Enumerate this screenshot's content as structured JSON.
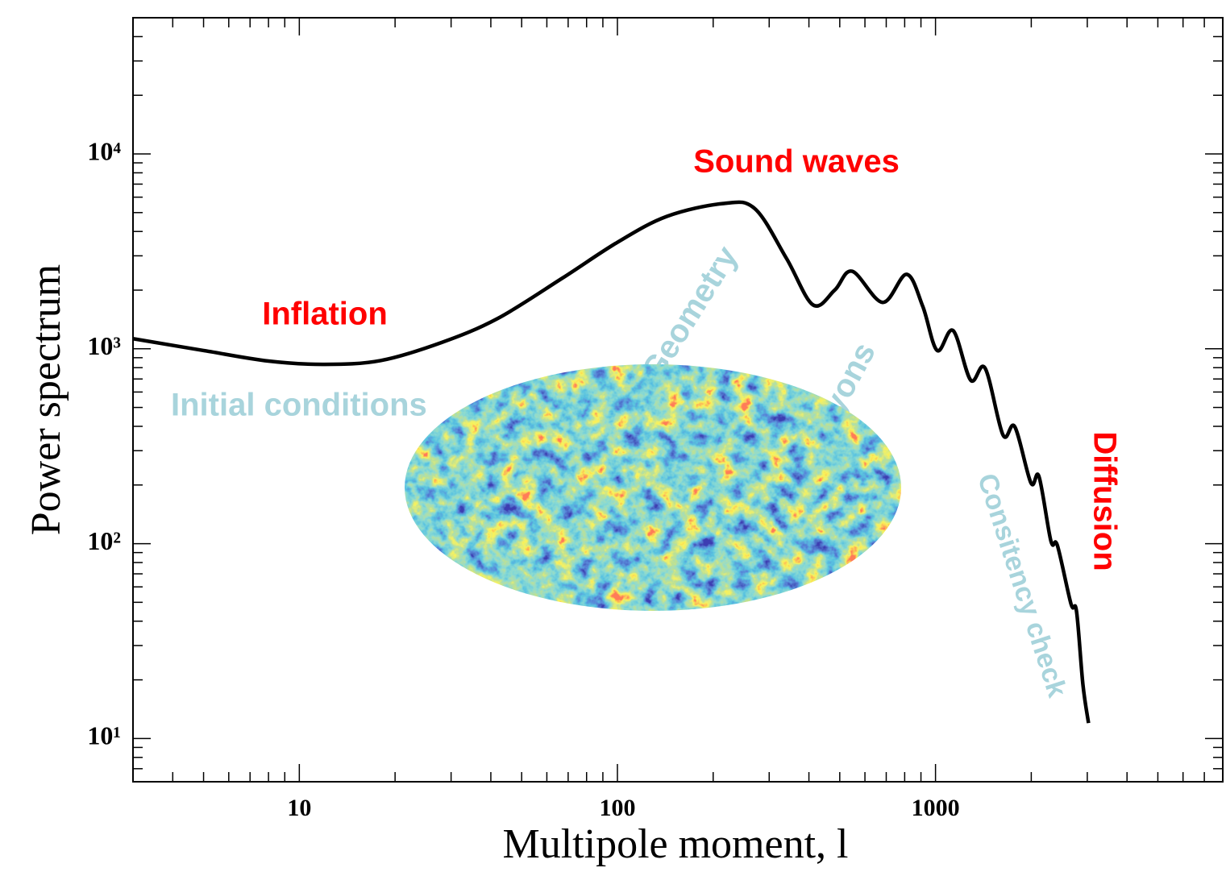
{
  "chart_data": {
    "type": "line",
    "xlabel": "Multipole moment, l",
    "ylabel": "Power spectrum",
    "log_x": true,
    "log_y": true,
    "color": "#000000",
    "x": [
      3,
      5,
      8,
      12,
      18,
      28,
      42,
      67,
      100,
      143,
      214,
      270,
      340,
      412,
      482,
      547,
      682,
      811,
      912,
      1012,
      1136,
      1290,
      1432,
      1630,
      1775,
      1995,
      2115,
      2306,
      2416,
      2667,
      2775,
      2906,
      3027
    ],
    "values": [
      1127,
      980,
      865,
      832,
      870,
      1077,
      1430,
      2300,
      3520,
      4780,
      5560,
      5250,
      2910,
      1680,
      2000,
      2500,
      1730,
      2410,
      1650,
      980,
      1240,
      690,
      795,
      361,
      398,
      205,
      221,
      103,
      98,
      49,
      45,
      19,
      12
    ],
    "xlim": [
      3,
      8000
    ],
    "ylim": [
      6,
      50000
    ],
    "xticks": [
      10,
      100,
      1000
    ],
    "yticks": [
      {
        "value": 10,
        "label": "10¹"
      },
      {
        "value": 100,
        "label": "10²"
      },
      {
        "value": 1000,
        "label": "10³"
      },
      {
        "value": 10000,
        "label": "10⁴"
      }
    ],
    "xminorticks": [
      3,
      4,
      5,
      6,
      7,
      8,
      9,
      20,
      30,
      40,
      50,
      60,
      70,
      80,
      90,
      200,
      300,
      400,
      500,
      600,
      700,
      800,
      900,
      2000,
      3000,
      4000,
      5000,
      6000,
      7000,
      8000
    ],
    "yminorticks": [
      6,
      7,
      8,
      9,
      20,
      30,
      40,
      50,
      60,
      70,
      80,
      90,
      200,
      300,
      400,
      500,
      600,
      700,
      800,
      900,
      2000,
      3000,
      4000,
      5000,
      6000,
      7000,
      8000,
      9000,
      20000,
      30000,
      40000
    ],
    "annotations": [
      {
        "text": "Sound waves",
        "color": "#ff0000"
      },
      {
        "text": "Inflation",
        "color": "#ff0000"
      },
      {
        "text": "Initial conditions",
        "color": "#a8d4dc"
      },
      {
        "text": "Geometry",
        "color": "#a8d4dc"
      },
      {
        "text": "Baryons",
        "color": "#a8d4dc"
      },
      {
        "text": "Consitency check",
        "color": "#a8d4dc"
      },
      {
        "text": "Diffusion",
        "color": "#ff0000"
      }
    ]
  }
}
